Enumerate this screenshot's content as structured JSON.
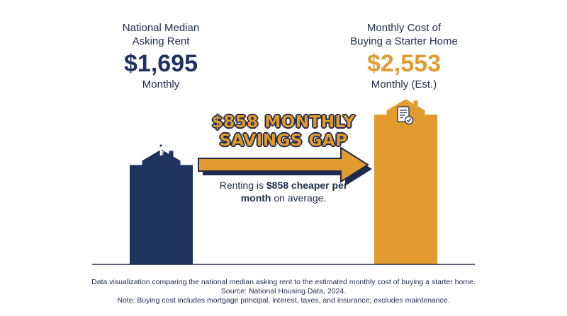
{
  "rent": {
    "label_line1": "National Median",
    "label_line2": "Asking Rent",
    "value_text": "$1,695",
    "period": "Monthly"
  },
  "buy": {
    "label_line1": "Monthly Cost of",
    "label_line2": "Buying a Starter Home",
    "value_text": "$2,553",
    "period": "Monthly (Est.)"
  },
  "gap": {
    "title_line1": "$858 MONTHLY",
    "title_line2": "SAVINGS GAP",
    "note_pre": "Renting is ",
    "note_bold": "$858 cheaper per month",
    "note_post": " on average."
  },
  "footer": {
    "line1": "Data visualization comparing the national median asking rent to the estimated monthly cost of buying a starter home.",
    "line2": "Source: National Housing Data, 2024.",
    "line3": "Note: Buying cost includes mortgage principal, interest, taxes, and insurance; excludes maintenance."
  },
  "colors": {
    "rent": "#1f3260",
    "buy": "#e29b2f",
    "arrow": "#e29b2f",
    "outline": "#1f2b4d"
  },
  "icons": {
    "rent": "key-icon",
    "buy": "document-check-icon"
  },
  "chart_data": {
    "type": "bar",
    "categories": [
      "National Median Asking Rent",
      "Monthly Cost of Buying a Starter Home"
    ],
    "values": [
      1695,
      2553
    ],
    "ylim": [
      0,
      2700
    ],
    "grid": false
  }
}
